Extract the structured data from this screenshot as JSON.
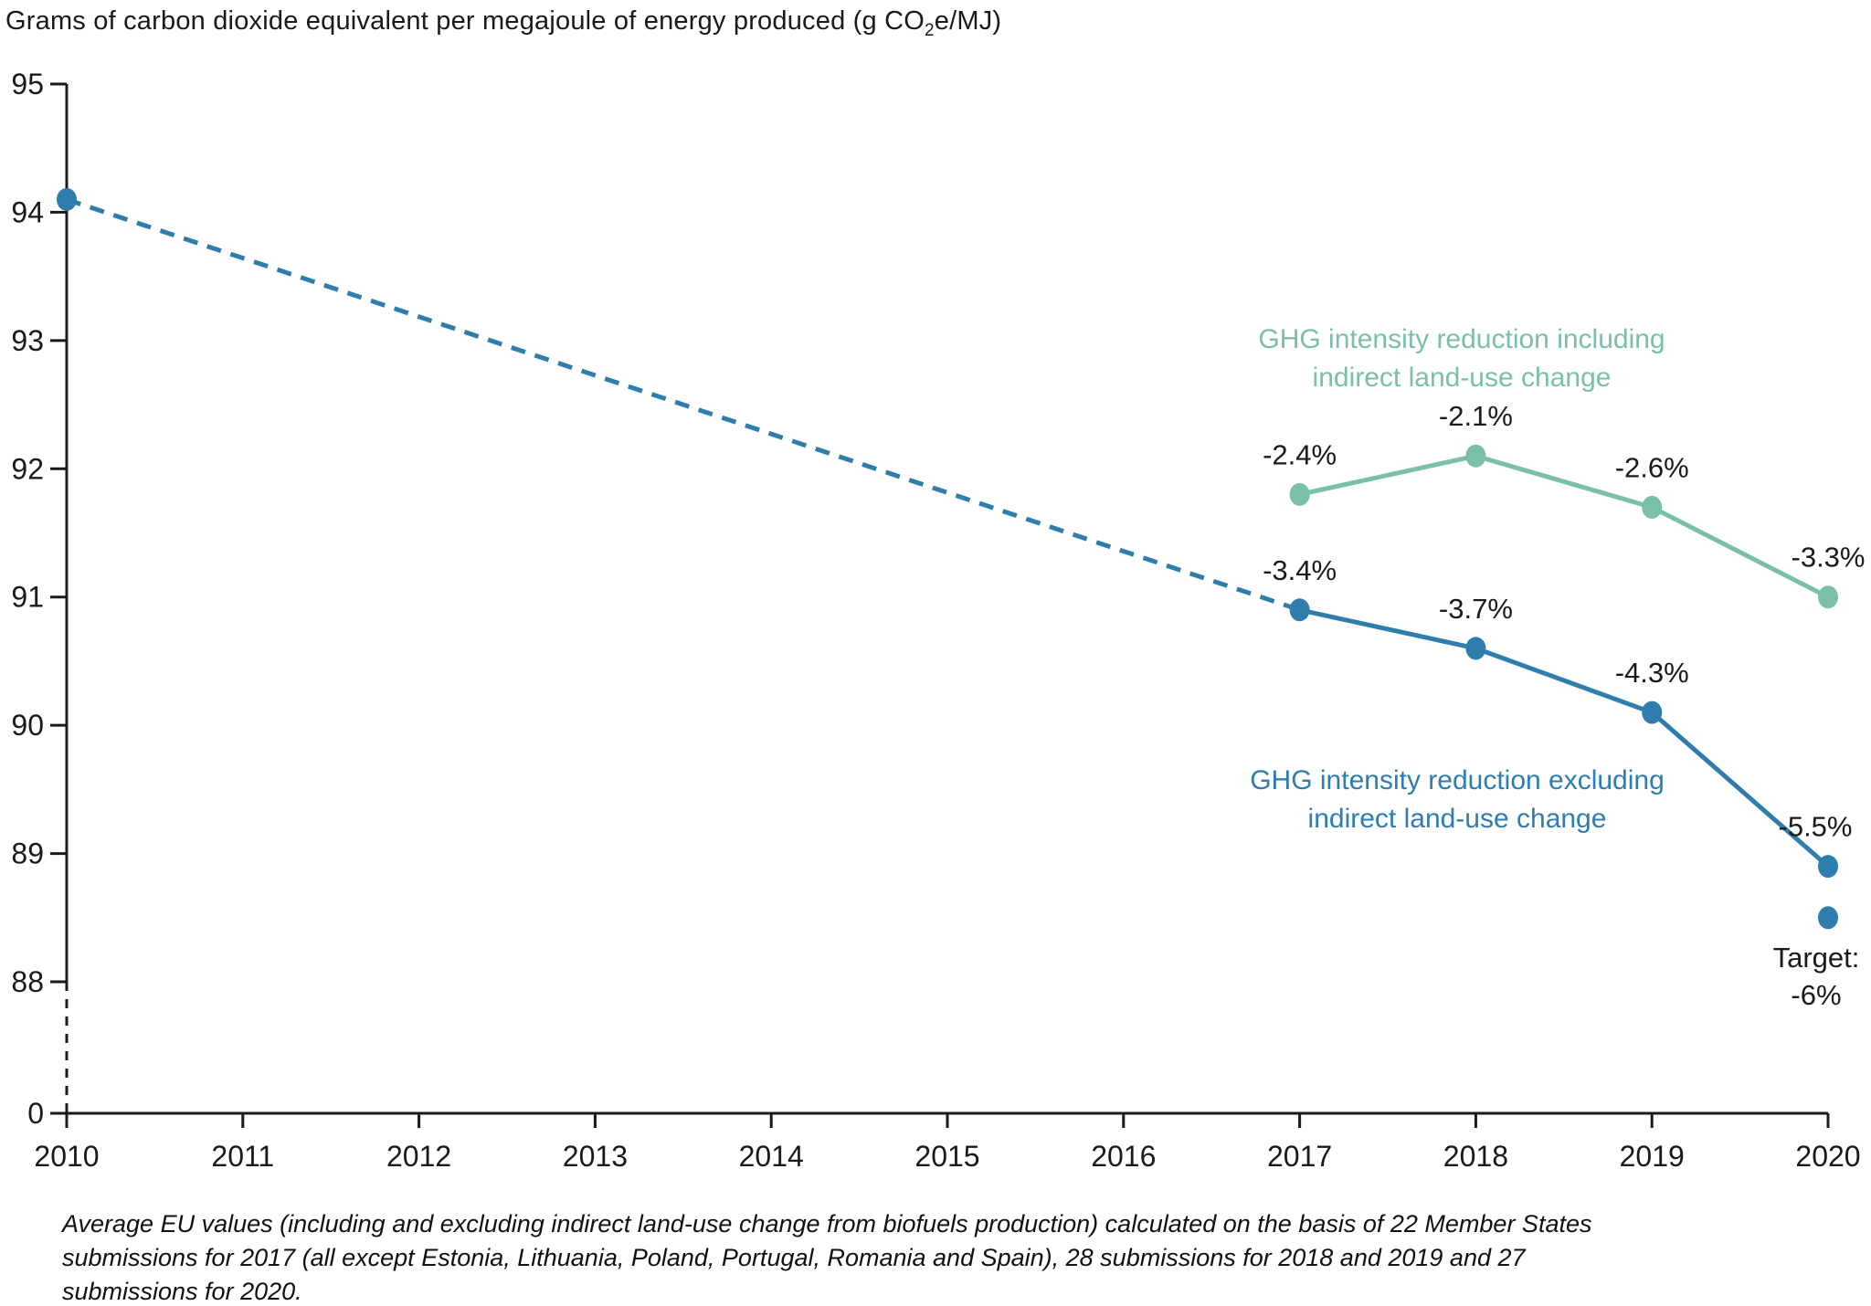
{
  "title": {
    "pre": "Grams of carbon dioxide equivalent per megajoule of energy produced (g CO",
    "sub": "2",
    "post": "e/MJ)"
  },
  "colors": {
    "excluding": "#2e7dac",
    "including": "#7abfa7",
    "axis": "#1a1a1a",
    "text": "#1a1a1a"
  },
  "chart_data": {
    "type": "line",
    "title": "Grams of carbon dioxide equivalent per megajoule of energy produced (g CO2e/MJ)",
    "ylabel": "g CO2e/MJ",
    "x_tick_labels": [
      "2010",
      "2011",
      "2012",
      "2013",
      "2014",
      "2015",
      "2016",
      "2017",
      "2018",
      "2019",
      "2020"
    ],
    "y_tick_labels": [
      "95",
      "94",
      "93",
      "92",
      "91",
      "90",
      "89",
      "88",
      "0"
    ],
    "y_axis_break": "axis broken between 0 and 88, shown as dashed segment",
    "ylim_main": [
      88,
      95
    ],
    "grid": "off",
    "series": [
      {
        "name": "GHG intensity reduction excluding indirect land-use change",
        "color_key": "excluding",
        "style": "solid",
        "x": [
          2017,
          2018,
          2019,
          2020
        ],
        "values": [
          90.9,
          90.6,
          90.1,
          88.9
        ],
        "point_labels": [
          "-3.4%",
          "-3.7%",
          "-4.3%",
          "-5.5%"
        ]
      },
      {
        "name": "GHG intensity reduction including indirect land-use change",
        "color_key": "including",
        "style": "solid",
        "x": [
          2017,
          2018,
          2019,
          2020
        ],
        "values": [
          91.8,
          92.1,
          91.7,
          91.0
        ],
        "point_labels": [
          "-2.4%",
          "-2.1%",
          "-2.6%",
          "-3.3%"
        ]
      },
      {
        "name": "2010 value connected to 2017 by dashed trend line",
        "color_key": "excluding",
        "style": "dashed",
        "x": [
          2010,
          2017
        ],
        "values": [
          94.1,
          90.9
        ],
        "point_labels": [
          "",
          ""
        ]
      }
    ],
    "target_point": {
      "x": 2020,
      "value": 88.5,
      "label": [
        "Target:",
        "-6%"
      ]
    }
  },
  "legend": {
    "including_lines": [
      "GHG intensity reduction including",
      "indirect land-use change"
    ],
    "excluding_lines": [
      "GHG intensity reduction excluding",
      "indirect land-use change"
    ]
  },
  "footnote_lines": [
    "Average EU values (including and excluding indirect land-use change from biofuels production) calculated on the basis of 22 Member States",
    "submissions for 2017 (all except Estonia, Lithuania, Poland, Portugal, Romania and Spain), 28 submissions for 2018 and 2019 and 27",
    "submissions for 2020."
  ]
}
